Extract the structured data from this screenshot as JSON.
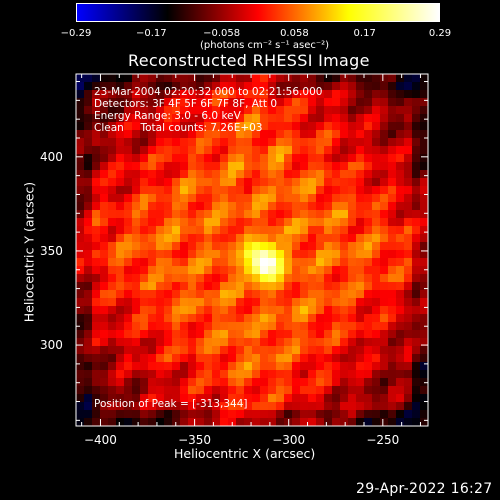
{
  "title": "Reconstructed RHESSI Image",
  "info_lines": [
    "23-Mar-2004 02:20:32.000 to 02:21:56.000",
    "Detectors: 3F 4F 5F 6F 7F 8F, Att 0",
    "Energy Range: 3.0 - 6.0 keV",
    "Clean     Total counts: 7.26E+03"
  ],
  "peak_label": "Position of Peak = [-313,344]",
  "footer_timestamp": "29-Apr-2022 16:27",
  "colorbar": {
    "min": -0.29,
    "max": 0.29,
    "tick_labels": [
      "-0.29",
      "-0.17",
      "-0.058",
      "0.058",
      "0.17",
      "0.29"
    ],
    "unit_label": "(photons cm⁻² s⁻¹ asec⁻²)",
    "colors": [
      "#0000ff",
      "#000000",
      "#ff0000",
      "#ffff00",
      "#ffffff"
    ]
  },
  "chart_data": {
    "type": "heatmap",
    "title": "Reconstructed RHESSI Image",
    "xlabel": "Heliocentric X (arcsec)",
    "ylabel": "Heliocentric Y (arcsec)",
    "xlim": [
      -413,
      -226
    ],
    "ylim": [
      257,
      444
    ],
    "xticks": [
      -400,
      -350,
      -300,
      -250
    ],
    "yticks": [
      300,
      350,
      400
    ],
    "xtick_labels": [
      "−400",
      "−350",
      "−300",
      "−250"
    ],
    "ytick_labels": [
      "300",
      "350",
      "400"
    ],
    "peak": {
      "x": -313,
      "y": 344,
      "value": 0.29
    },
    "background_pattern": "diagonal fringes, values about -0.06 to 0.15"
  }
}
